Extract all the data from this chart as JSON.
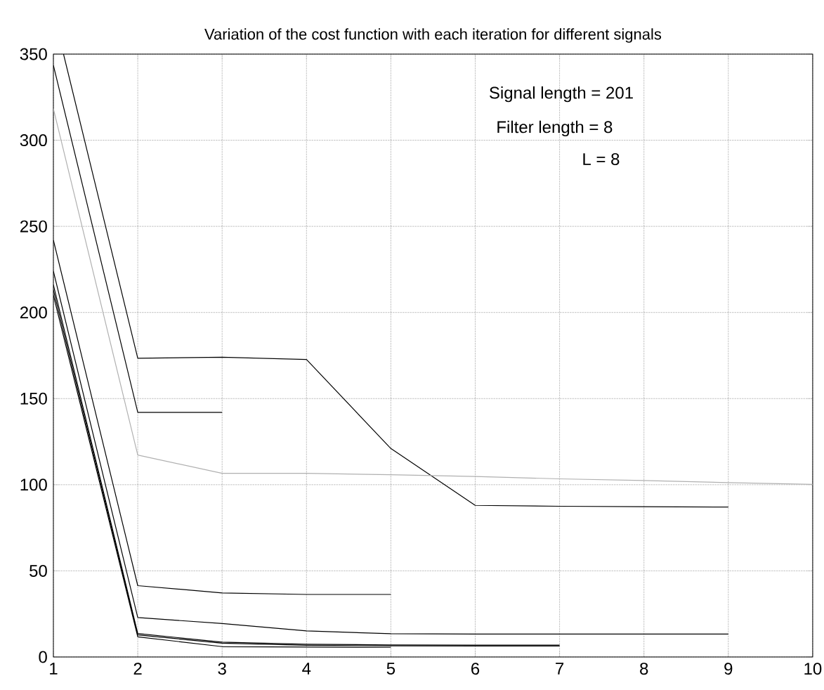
{
  "chart_data": {
    "type": "line",
    "title": "Variation of the cost function with each iteration for different signals",
    "series": [
      {
        "color": "#000000",
        "x": [
          1.12,
          2,
          3,
          4,
          5,
          6,
          7,
          8,
          9
        ],
        "values": [
          350,
          173.4,
          174,
          172.7,
          121,
          88,
          87.5,
          87.2,
          87
        ]
      },
      {
        "color": "#000000",
        "x": [
          1,
          2,
          3
        ],
        "values": [
          343.5,
          142,
          142
        ]
      },
      {
        "color": "#b0b0b0",
        "x": [
          1,
          2,
          3,
          4,
          5,
          6,
          7,
          8,
          9,
          10
        ],
        "values": [
          318.3,
          117.2,
          106.6,
          106.6,
          105.8,
          104.8,
          103.4,
          102.4,
          101.2,
          100.2
        ]
      },
      {
        "color": "#000000",
        "x": [
          1,
          2,
          3,
          4,
          5
        ],
        "values": [
          242,
          41.4,
          37.2,
          36.3,
          36.3
        ]
      },
      {
        "color": "#000000",
        "x": [
          1,
          2,
          3,
          4,
          5,
          6,
          7,
          8,
          9
        ],
        "values": [
          224,
          22.9,
          19.4,
          15.1,
          13.5,
          13.3,
          13.3,
          13.3,
          13.3
        ]
      },
      {
        "color": "#000000",
        "x": [
          1,
          2,
          3,
          4,
          5,
          6,
          7
        ],
        "values": [
          216,
          13.6,
          8.6,
          7.4,
          7.0,
          6.9,
          6.9
        ]
      },
      {
        "color": "#000000",
        "x": [
          1,
          2,
          3,
          4,
          5,
          6,
          7
        ],
        "values": [
          213,
          12.8,
          8.0,
          6.8,
          6.5,
          6.4,
          6.4
        ]
      },
      {
        "color": "#000000",
        "x": [
          1,
          2,
          3,
          4,
          5
        ],
        "values": [
          210,
          11.7,
          6.0,
          5.8,
          5.6
        ]
      }
    ],
    "annotations": [
      "Signal length = 201",
      "Filter length = 8",
      "L = 8"
    ],
    "xlim": [
      1,
      10
    ],
    "xticks": [
      1,
      2,
      3,
      4,
      5,
      6,
      7,
      8,
      9,
      10
    ],
    "ylim": [
      0,
      350
    ],
    "yticks": [
      0,
      50,
      100,
      150,
      200,
      250,
      300,
      350
    ],
    "grid": true,
    "marker": "none",
    "line_style": "solid"
  }
}
